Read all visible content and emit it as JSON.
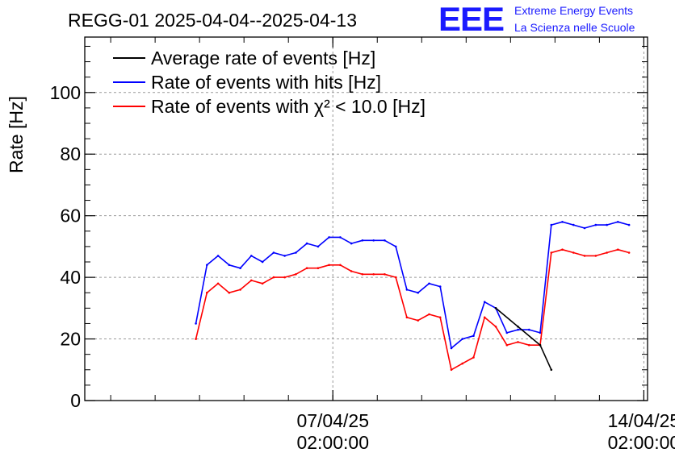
{
  "chart_data": {
    "type": "line",
    "title": "REGG-01 2025-04-04--2025-04-13",
    "xlabel": "",
    "ylabel": "Rate [Hz]",
    "ylim": [
      0,
      118
    ],
    "xlim_days": [
      "2025-04-01 12:00",
      "2025-04-14 04:00"
    ],
    "grid": true,
    "legend_placement": "top-left",
    "yticks": [
      0,
      20,
      40,
      60,
      80,
      100
    ],
    "yticks_labels": [
      "0",
      "20",
      "40",
      "60",
      "80",
      "100"
    ],
    "xticks": [
      {
        "x": "2025-04-07 02:00:00",
        "date": "07/04/25",
        "time": "02:00:00"
      },
      {
        "x": "2025-04-14 02:00:00",
        "date": "14/04/25",
        "time": "02:00:00"
      }
    ],
    "legend": [
      {
        "key": "avg",
        "label": "Average rate of events [Hz]",
        "color": "#000000"
      },
      {
        "key": "hits",
        "label": "Rate of events with hits [Hz]",
        "color": "#0000ff"
      },
      {
        "key": "chi2",
        "label": "Rate of events with χ² < 10.0 [Hz]",
        "color": "#ff0000"
      }
    ],
    "series": [
      {
        "key": "hits",
        "color": "#0000ff",
        "x": [
          "2025-04-04 00:00",
          "2025-04-04 06:00",
          "2025-04-04 12:00",
          "2025-04-04 18:00",
          "2025-04-05 00:00",
          "2025-04-05 06:00",
          "2025-04-05 12:00",
          "2025-04-05 18:00",
          "2025-04-06 00:00",
          "2025-04-06 06:00",
          "2025-04-06 12:00",
          "2025-04-06 18:00",
          "2025-04-07 00:00",
          "2025-04-07 06:00",
          "2025-04-07 12:00",
          "2025-04-07 18:00",
          "2025-04-08 00:00",
          "2025-04-08 06:00",
          "2025-04-08 12:00",
          "2025-04-08 18:00",
          "2025-04-09 00:00",
          "2025-04-09 06:00",
          "2025-04-09 12:00",
          "2025-04-09 18:00",
          "2025-04-10 00:00",
          "2025-04-10 06:00",
          "2025-04-10 12:00",
          "2025-04-10 18:00",
          "2025-04-11 00:00",
          "2025-04-11 06:00",
          "2025-04-11 12:00",
          "2025-04-11 18:00",
          "2025-04-12 00:00",
          "2025-04-12 06:00",
          "2025-04-12 12:00",
          "2025-04-12 18:00",
          "2025-04-13 00:00",
          "2025-04-13 06:00",
          "2025-04-13 12:00",
          "2025-04-13 18:00"
        ],
        "y": [
          25,
          44,
          47,
          44,
          43,
          47,
          45,
          48,
          47,
          48,
          51,
          50,
          53,
          53,
          51,
          52,
          52,
          52,
          50,
          36,
          35,
          38,
          37,
          17,
          20,
          21,
          32,
          30,
          22,
          23,
          23,
          22,
          57,
          58,
          57,
          56,
          57,
          57,
          58,
          57
        ]
      },
      {
        "key": "chi2",
        "color": "#ff0000",
        "x": [
          "2025-04-04 00:00",
          "2025-04-04 06:00",
          "2025-04-04 12:00",
          "2025-04-04 18:00",
          "2025-04-05 00:00",
          "2025-04-05 06:00",
          "2025-04-05 12:00",
          "2025-04-05 18:00",
          "2025-04-06 00:00",
          "2025-04-06 06:00",
          "2025-04-06 12:00",
          "2025-04-06 18:00",
          "2025-04-07 00:00",
          "2025-04-07 06:00",
          "2025-04-07 12:00",
          "2025-04-07 18:00",
          "2025-04-08 00:00",
          "2025-04-08 06:00",
          "2025-04-08 12:00",
          "2025-04-08 18:00",
          "2025-04-09 00:00",
          "2025-04-09 06:00",
          "2025-04-09 12:00",
          "2025-04-09 18:00",
          "2025-04-10 00:00",
          "2025-04-10 06:00",
          "2025-04-10 12:00",
          "2025-04-10 18:00",
          "2025-04-11 00:00",
          "2025-04-11 06:00",
          "2025-04-11 12:00",
          "2025-04-11 18:00",
          "2025-04-12 00:00",
          "2025-04-12 06:00",
          "2025-04-12 12:00",
          "2025-04-12 18:00",
          "2025-04-13 00:00",
          "2025-04-13 06:00",
          "2025-04-13 12:00",
          "2025-04-13 18:00"
        ],
        "y": [
          20,
          35,
          38,
          35,
          36,
          39,
          38,
          40,
          40,
          41,
          43,
          43,
          44,
          44,
          42,
          41,
          41,
          41,
          40,
          27,
          26,
          28,
          27,
          10,
          12,
          14,
          27,
          24,
          18,
          19,
          18,
          18,
          48,
          49,
          48,
          47,
          47,
          48,
          49,
          48
        ]
      },
      {
        "key": "avg",
        "color": "#000000",
        "x": [
          "2025-04-10 18:00",
          "2025-04-11 06:00",
          "2025-04-11 18:00",
          "2025-04-12 00:00"
        ],
        "y": [
          30,
          24,
          18,
          10
        ]
      }
    ]
  },
  "logo": {
    "mark": "EEE",
    "line1": "Extreme Energy Events",
    "line2": "La Scienza nelle Scuole",
    "color": "#1a1aff"
  }
}
